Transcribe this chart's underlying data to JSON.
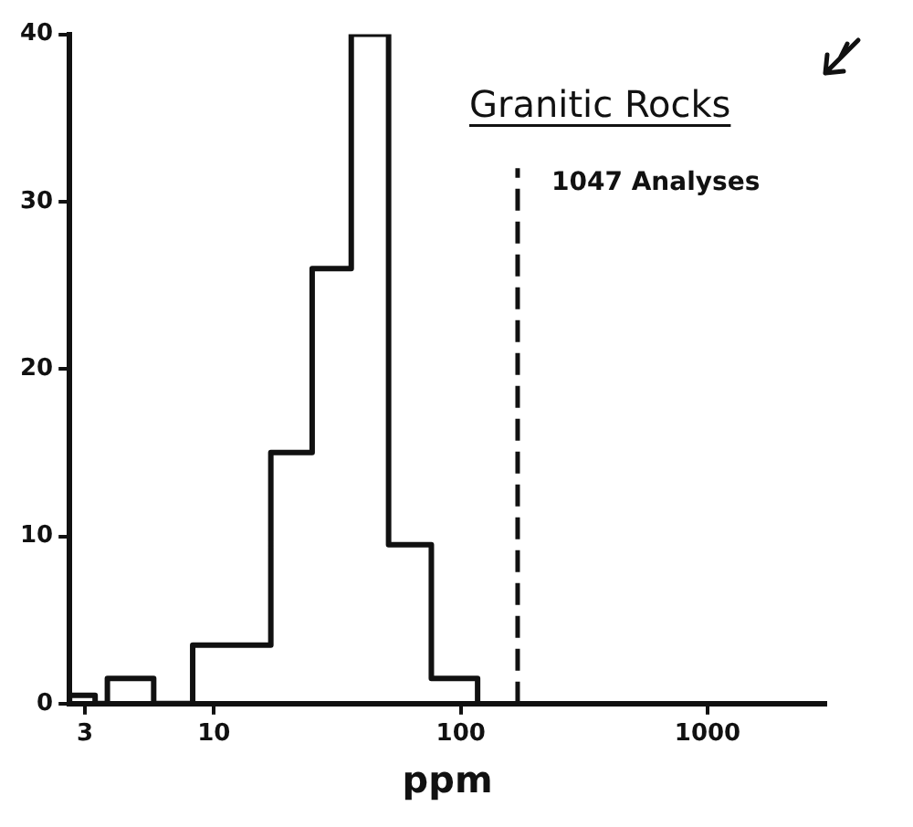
{
  "chart_data": {
    "type": "histogram",
    "title": "Granitic Rocks",
    "xlabel": "ppm",
    "annotations": [
      "1047 Analyses"
    ],
    "bins": [
      2.6,
      3.3,
      3.7,
      5.7,
      8.2,
      17,
      25,
      36,
      51,
      76,
      117
    ],
    "values": [
      0.5,
      0,
      1.5,
      0,
      3.5,
      15,
      26,
      40,
      9.5,
      1.5
    ],
    "color": "#111111",
    "log": "x",
    "xlim": [
      2.6,
      3000
    ],
    "xticks": [
      3,
      10,
      100,
      1000
    ],
    "ylim": [
      0,
      40
    ],
    "yticks": [
      0,
      10,
      20,
      30,
      40
    ],
    "ref_lines": [
      {
        "axis": "x",
        "value": 170,
        "line_style": "dashed"
      }
    ],
    "legend": false
  }
}
